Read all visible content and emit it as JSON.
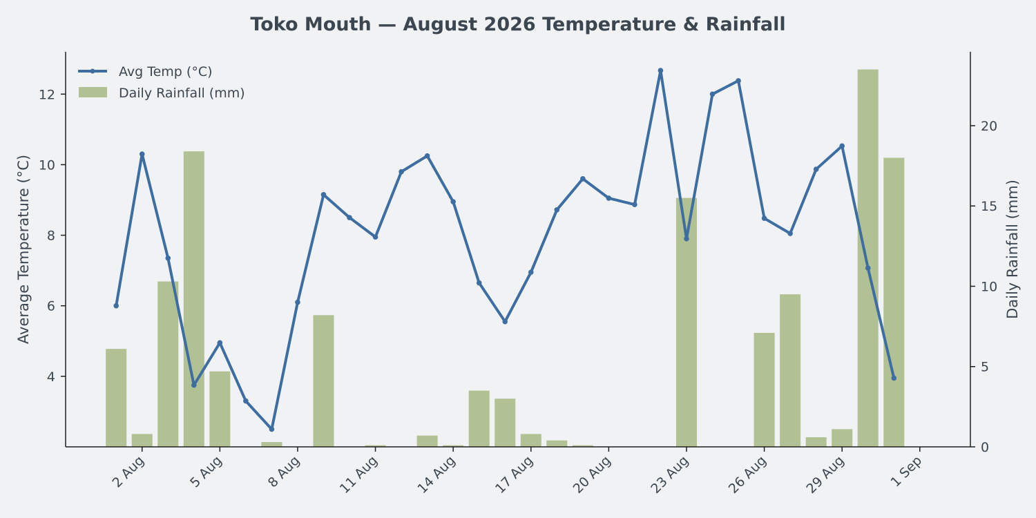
{
  "chart_data": {
    "type": "bar+line",
    "title": "Toko Mouth — August 2026 Temperature & Rainfall",
    "ylabel_left": "Average Temperature (°C)",
    "ylabel_right": "Daily Rainfall (mm)",
    "x_tick_labels": [
      "2 Aug",
      "5 Aug",
      "8 Aug",
      "11 Aug",
      "14 Aug",
      "17 Aug",
      "20 Aug",
      "23 Aug",
      "26 Aug",
      "29 Aug",
      "1 Sep"
    ],
    "x_tick_days": [
      2,
      5,
      8,
      11,
      14,
      17,
      20,
      23,
      26,
      29,
      32
    ],
    "xlim_days": [
      -0.95,
      33.95
    ],
    "y_left_ticks": [
      4,
      6,
      8,
      10,
      12
    ],
    "y_left_lim": [
      2.0,
      13.2
    ],
    "y_right_ticks": [
      0,
      5,
      10,
      15,
      20
    ],
    "y_right_lim": [
      0,
      24.6
    ],
    "legend_position": "top-left",
    "series": [
      {
        "name": "Avg Temp (°C)",
        "type": "line",
        "axis": "left",
        "color": "#3d6da1",
        "x": [
          1,
          2,
          3,
          4,
          5,
          6,
          7,
          8,
          9,
          10,
          11,
          12,
          13,
          14,
          15,
          16,
          17,
          18,
          19,
          20,
          21,
          22,
          23,
          24,
          25,
          26,
          27,
          28,
          29,
          30,
          31
        ],
        "values": [
          6.0,
          10.3,
          7.35,
          3.75,
          4.95,
          3.3,
          2.5,
          6.1,
          9.15,
          8.5,
          7.95,
          9.8,
          10.25,
          8.95,
          6.65,
          5.55,
          6.95,
          8.72,
          9.6,
          9.05,
          8.87,
          12.67,
          7.9,
          12.0,
          12.38,
          8.48,
          8.05,
          9.87,
          10.53,
          7.07,
          3.95
        ]
      },
      {
        "name": "Daily Rainfall (mm)",
        "type": "bar",
        "axis": "right",
        "color": "#a6b983",
        "x": [
          1,
          2,
          3,
          4,
          5,
          6,
          7,
          8,
          9,
          10,
          11,
          12,
          13,
          14,
          15,
          16,
          17,
          18,
          19,
          20,
          21,
          22,
          23,
          24,
          25,
          26,
          27,
          28,
          29,
          30,
          31
        ],
        "values": [
          6.1,
          0.8,
          10.3,
          18.4,
          4.7,
          0.0,
          0.3,
          0.0,
          8.2,
          0.0,
          0.1,
          0.0,
          0.7,
          0.1,
          3.5,
          3.0,
          0.8,
          0.4,
          0.1,
          0.0,
          0.0,
          0.0,
          15.5,
          0.0,
          0.0,
          7.1,
          9.5,
          0.6,
          1.1,
          23.5,
          18.0
        ]
      }
    ]
  }
}
